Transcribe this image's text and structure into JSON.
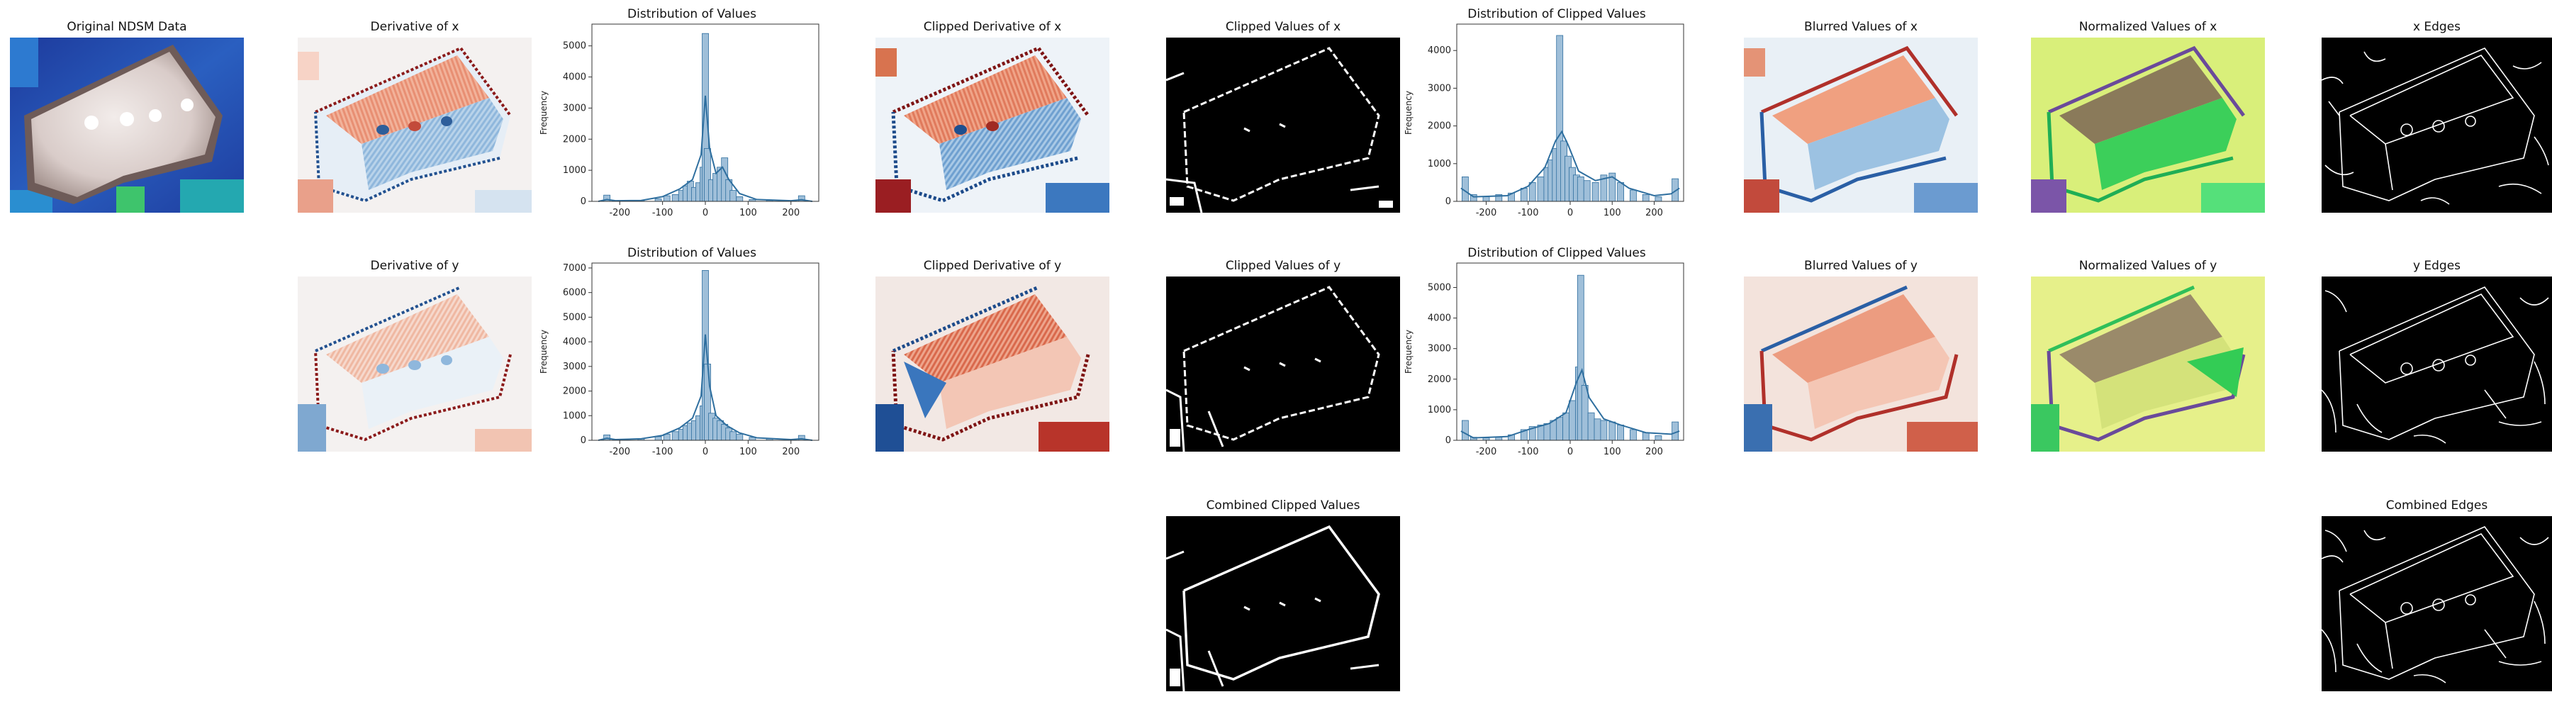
{
  "figure": {
    "panels": {
      "original": "Original NDSM Data",
      "deriv_x": "Derivative of x",
      "deriv_y": "Derivative of y",
      "clip_deriv_x": "Clipped Derivative of x",
      "clip_deriv_y": "Clipped Derivative of y",
      "clip_vals_x": "Clipped Values  of x",
      "clip_vals_y": "Clipped Values  of y",
      "combined_clipped": "Combined Clipped Values",
      "blur_x": "Blurred Values of x",
      "blur_y": "Blurred Values of y",
      "norm_x": "Normalized Values of x",
      "norm_y": "Normalized Values of y",
      "edges_x": "x Edges",
      "edges_y": "y Edges",
      "combined_edges": "Combined Edges"
    },
    "colors": {
      "hist_bar": "#9fbfd9",
      "hist_edge": "#2f6f9f",
      "kde": "#2f6f9f",
      "ndsm_low": "#1f3fa0",
      "ndsm_high": "#e9dfdc",
      "red": "#c0392b",
      "blue": "#2f6ea8",
      "norm_green": "#33cc55",
      "norm_yellow": "#e6f08a"
    }
  },
  "chart_data": [
    {
      "type": "bar",
      "title": "Distribution of Values",
      "xlabel": "",
      "ylabel": "Frequency",
      "xlim": [
        -265,
        265
      ],
      "ylim": [
        0,
        5700
      ],
      "xticks": [
        -200,
        -100,
        0,
        100,
        200
      ],
      "yticks": [
        0,
        1000,
        2000,
        3000,
        4000,
        5000
      ],
      "bins": [
        {
          "x": -230,
          "y": 200
        },
        {
          "x": -200,
          "y": 20
        },
        {
          "x": -150,
          "y": 30
        },
        {
          "x": -110,
          "y": 80
        },
        {
          "x": -90,
          "y": 180
        },
        {
          "x": -70,
          "y": 220
        },
        {
          "x": -55,
          "y": 350
        },
        {
          "x": -45,
          "y": 500
        },
        {
          "x": -35,
          "y": 650
        },
        {
          "x": -25,
          "y": 450
        },
        {
          "x": -15,
          "y": 600
        },
        {
          "x": -5,
          "y": 1100
        },
        {
          "x": 0,
          "y": 5400
        },
        {
          "x": 5,
          "y": 1700
        },
        {
          "x": 15,
          "y": 700
        },
        {
          "x": 25,
          "y": 900
        },
        {
          "x": 35,
          "y": 1100
        },
        {
          "x": 45,
          "y": 1400
        },
        {
          "x": 55,
          "y": 700
        },
        {
          "x": 65,
          "y": 350
        },
        {
          "x": 80,
          "y": 150
        },
        {
          "x": 110,
          "y": 60
        },
        {
          "x": 150,
          "y": 30
        },
        {
          "x": 200,
          "y": 20
        },
        {
          "x": 225,
          "y": 180
        }
      ],
      "kde": [
        [
          -250,
          0
        ],
        [
          -230,
          60
        ],
        [
          -210,
          20
        ],
        [
          -150,
          30
        ],
        [
          -100,
          150
        ],
        [
          -60,
          400
        ],
        [
          -30,
          700
        ],
        [
          -10,
          1500
        ],
        [
          0,
          3400
        ],
        [
          10,
          1700
        ],
        [
          25,
          900
        ],
        [
          40,
          1100
        ],
        [
          55,
          700
        ],
        [
          80,
          250
        ],
        [
          120,
          60
        ],
        [
          200,
          20
        ],
        [
          225,
          50
        ],
        [
          250,
          0
        ]
      ]
    },
    {
      "type": "bar",
      "title": "Distribution of Values",
      "xlabel": "",
      "ylabel": "Frequency",
      "xlim": [
        -265,
        265
      ],
      "ylim": [
        0,
        7200
      ],
      "xticks": [
        -200,
        -100,
        0,
        100,
        200
      ],
      "yticks": [
        0,
        1000,
        2000,
        3000,
        4000,
        5000,
        6000,
        7000
      ],
      "bins": [
        {
          "x": -230,
          "y": 220
        },
        {
          "x": -200,
          "y": 30
        },
        {
          "x": -150,
          "y": 60
        },
        {
          "x": -110,
          "y": 150
        },
        {
          "x": -90,
          "y": 250
        },
        {
          "x": -70,
          "y": 350
        },
        {
          "x": -55,
          "y": 450
        },
        {
          "x": -45,
          "y": 600
        },
        {
          "x": -35,
          "y": 700
        },
        {
          "x": -25,
          "y": 800
        },
        {
          "x": -15,
          "y": 1000
        },
        {
          "x": -5,
          "y": 1400
        },
        {
          "x": 0,
          "y": 6900
        },
        {
          "x": 5,
          "y": 3100
        },
        {
          "x": 15,
          "y": 1100
        },
        {
          "x": 25,
          "y": 900
        },
        {
          "x": 35,
          "y": 800
        },
        {
          "x": 45,
          "y": 650
        },
        {
          "x": 55,
          "y": 500
        },
        {
          "x": 65,
          "y": 350
        },
        {
          "x": 80,
          "y": 250
        },
        {
          "x": 110,
          "y": 120
        },
        {
          "x": 150,
          "y": 60
        },
        {
          "x": 200,
          "y": 30
        },
        {
          "x": 225,
          "y": 200
        }
      ],
      "kde": [
        [
          -250,
          0
        ],
        [
          -230,
          80
        ],
        [
          -210,
          30
        ],
        [
          -150,
          60
        ],
        [
          -100,
          200
        ],
        [
          -60,
          500
        ],
        [
          -30,
          900
        ],
        [
          -10,
          1800
        ],
        [
          0,
          4300
        ],
        [
          10,
          2200
        ],
        [
          25,
          1000
        ],
        [
          50,
          600
        ],
        [
          80,
          300
        ],
        [
          120,
          100
        ],
        [
          200,
          30
        ],
        [
          225,
          60
        ],
        [
          250,
          0
        ]
      ]
    },
    {
      "type": "bar",
      "title": "Distribution of Clipped Values",
      "xlabel": "",
      "ylabel": "Frequency",
      "xlim": [
        -270,
        270
      ],
      "ylim": [
        0,
        4700
      ],
      "xticks": [
        -200,
        -100,
        0,
        100,
        200
      ],
      "yticks": [
        0,
        1000,
        2000,
        3000,
        4000
      ],
      "bins": [
        {
          "x": -250,
          "y": 650
        },
        {
          "x": -230,
          "y": 180
        },
        {
          "x": -200,
          "y": 120
        },
        {
          "x": -170,
          "y": 180
        },
        {
          "x": -140,
          "y": 220
        },
        {
          "x": -110,
          "y": 350
        },
        {
          "x": -90,
          "y": 500
        },
        {
          "x": -70,
          "y": 650
        },
        {
          "x": -55,
          "y": 900
        },
        {
          "x": -45,
          "y": 1100
        },
        {
          "x": -35,
          "y": 1400
        },
        {
          "x": -25,
          "y": 4400
        },
        {
          "x": -15,
          "y": 1600
        },
        {
          "x": -5,
          "y": 1200
        },
        {
          "x": 5,
          "y": 900
        },
        {
          "x": 15,
          "y": 700
        },
        {
          "x": 25,
          "y": 650
        },
        {
          "x": 40,
          "y": 550
        },
        {
          "x": 60,
          "y": 500
        },
        {
          "x": 80,
          "y": 700
        },
        {
          "x": 100,
          "y": 750
        },
        {
          "x": 120,
          "y": 500
        },
        {
          "x": 150,
          "y": 300
        },
        {
          "x": 180,
          "y": 180
        },
        {
          "x": 210,
          "y": 120
        },
        {
          "x": 250,
          "y": 600
        }
      ],
      "kde": [
        [
          -260,
          350
        ],
        [
          -230,
          120
        ],
        [
          -150,
          150
        ],
        [
          -100,
          400
        ],
        [
          -60,
          900
        ],
        [
          -35,
          1600
        ],
        [
          -20,
          1850
        ],
        [
          -5,
          1500
        ],
        [
          20,
          800
        ],
        [
          60,
          550
        ],
        [
          100,
          650
        ],
        [
          140,
          350
        ],
        [
          200,
          150
        ],
        [
          240,
          200
        ],
        [
          260,
          350
        ]
      ]
    },
    {
      "type": "bar",
      "title": "Distribution of Clipped Values",
      "xlabel": "",
      "ylabel": "Frequency",
      "xlim": [
        -270,
        270
      ],
      "ylim": [
        0,
        5800
      ],
      "xticks": [
        -200,
        -100,
        0,
        100,
        200
      ],
      "yticks": [
        0,
        1000,
        2000,
        3000,
        4000,
        5000
      ],
      "bins": [
        {
          "x": -250,
          "y": 650
        },
        {
          "x": -230,
          "y": 100
        },
        {
          "x": -200,
          "y": 80
        },
        {
          "x": -170,
          "y": 100
        },
        {
          "x": -140,
          "y": 180
        },
        {
          "x": -110,
          "y": 350
        },
        {
          "x": -90,
          "y": 450
        },
        {
          "x": -70,
          "y": 500
        },
        {
          "x": -55,
          "y": 550
        },
        {
          "x": -40,
          "y": 650
        },
        {
          "x": -25,
          "y": 750
        },
        {
          "x": -10,
          "y": 900
        },
        {
          "x": 5,
          "y": 1300
        },
        {
          "x": 20,
          "y": 2400
        },
        {
          "x": 25,
          "y": 5400
        },
        {
          "x": 35,
          "y": 1800
        },
        {
          "x": 50,
          "y": 900
        },
        {
          "x": 65,
          "y": 700
        },
        {
          "x": 80,
          "y": 650
        },
        {
          "x": 100,
          "y": 600
        },
        {
          "x": 120,
          "y": 500
        },
        {
          "x": 150,
          "y": 350
        },
        {
          "x": 180,
          "y": 250
        },
        {
          "x": 210,
          "y": 150
        },
        {
          "x": 250,
          "y": 600
        }
      ],
      "kde": [
        [
          -260,
          300
        ],
        [
          -230,
          80
        ],
        [
          -150,
          120
        ],
        [
          -100,
          350
        ],
        [
          -50,
          550
        ],
        [
          -10,
          900
        ],
        [
          15,
          1900
        ],
        [
          28,
          2300
        ],
        [
          45,
          1400
        ],
        [
          80,
          700
        ],
        [
          120,
          500
        ],
        [
          180,
          250
        ],
        [
          240,
          200
        ],
        [
          260,
          300
        ]
      ]
    }
  ]
}
